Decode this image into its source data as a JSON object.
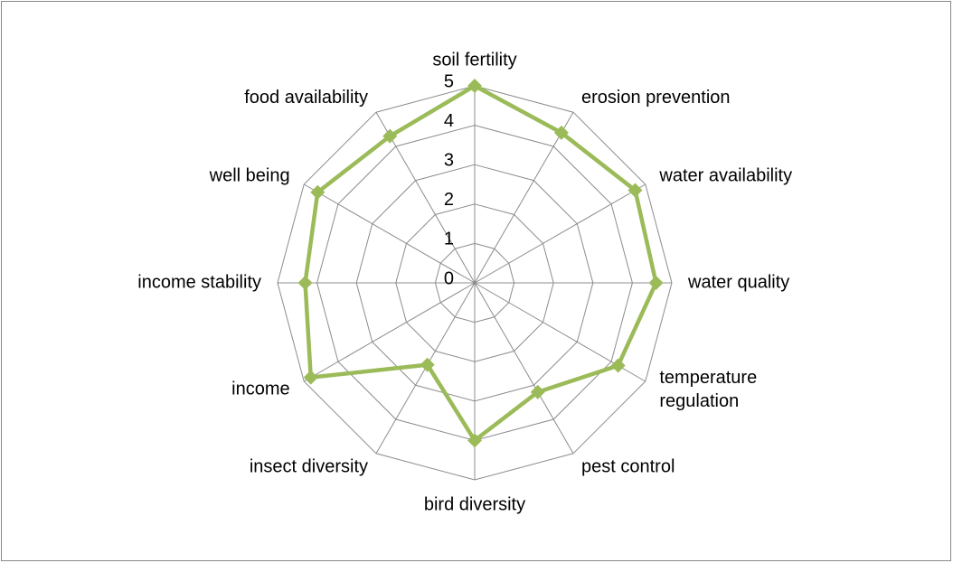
{
  "chart_data": {
    "type": "radar",
    "categories": [
      "soil fertility",
      "erosion prevention",
      "water availability",
      "water quality",
      "temperature regulation",
      "pest control",
      "bird diversity",
      "insect diversity",
      "income",
      "income stability",
      "well being",
      "food availability"
    ],
    "series": [
      {
        "color": "#9bbb59",
        "values": [
          5,
          4.4,
          4.7,
          4.6,
          4.2,
          3.2,
          4.0,
          2.4,
          4.8,
          4.3,
          4.6,
          4.3
        ]
      }
    ],
    "ylim": [
      0,
      5
    ],
    "yticks": [
      0,
      1,
      2,
      3,
      4,
      5
    ],
    "grid": true
  }
}
